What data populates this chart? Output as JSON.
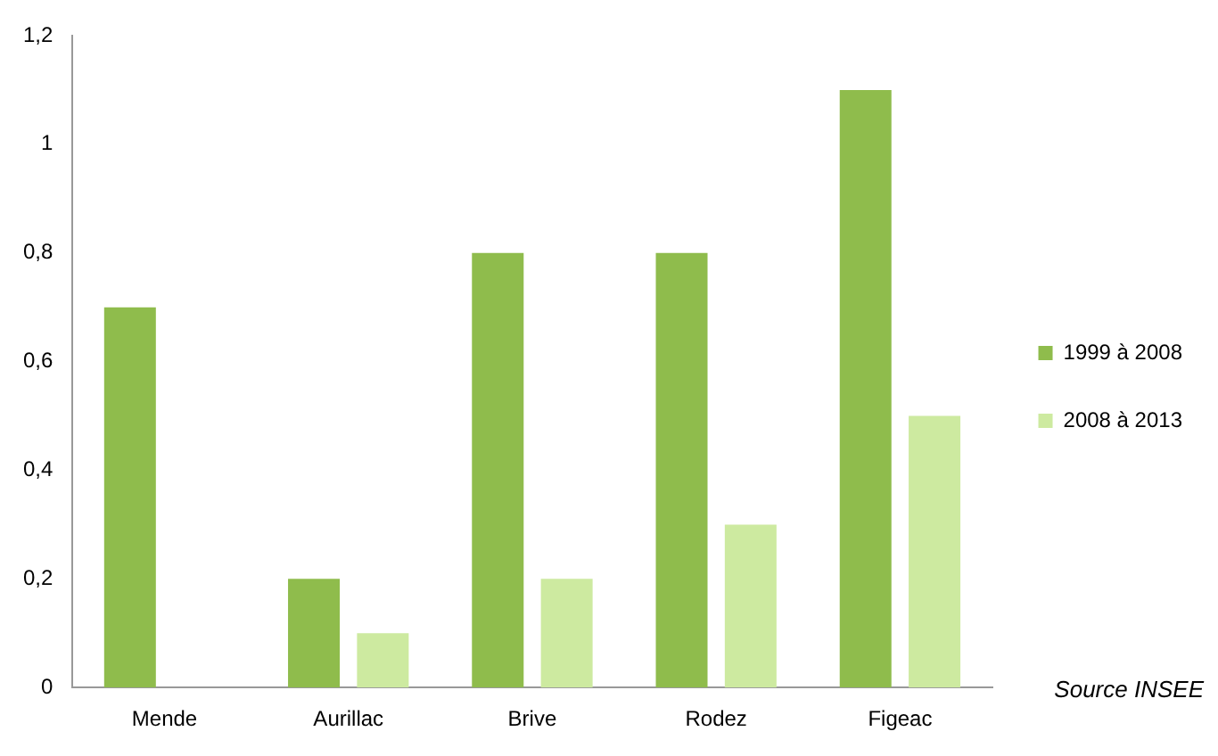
{
  "chart_data": {
    "type": "bar",
    "categories": [
      "Mende",
      "Aurillac",
      "Brive",
      "Rodez",
      "Figeac"
    ],
    "series": [
      {
        "name": "1999 à 2008",
        "color": "#8fbc4c",
        "values": [
          0.7,
          0.2,
          0.8,
          0.8,
          1.1
        ]
      },
      {
        "name": "2008 à 2013",
        "color": "#cdeaa0",
        "values": [
          null,
          0.1,
          0.2,
          0.3,
          0.5
        ]
      }
    ],
    "ylim": [
      0,
      1.2
    ],
    "yticks": [
      {
        "value": 0,
        "label": "0"
      },
      {
        "value": 0.2,
        "label": "0,2"
      },
      {
        "value": 0.4,
        "label": "0,4"
      },
      {
        "value": 0.6,
        "label": "0,6"
      },
      {
        "value": 0.8,
        "label": "0,8"
      },
      {
        "value": 1,
        "label": "1"
      },
      {
        "value": 1.2,
        "label": "1,2"
      }
    ],
    "grid": false,
    "legend": "right",
    "annotations": [
      "Source INSEE"
    ]
  }
}
